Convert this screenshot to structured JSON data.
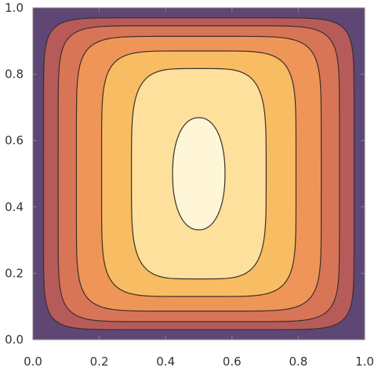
{
  "chart_data": {
    "type": "contour",
    "title": "",
    "xlabel": "",
    "ylabel": "",
    "xlim": [
      0,
      1
    ],
    "ylim": [
      0,
      1
    ],
    "x_ticks": [
      "0.0",
      "0.2",
      "0.4",
      "0.6",
      "0.8",
      "1.0"
    ],
    "y_ticks": [
      "0.0",
      "0.2",
      "0.4",
      "0.6",
      "0.8",
      "1.0"
    ],
    "grid": false,
    "legend": "none",
    "contour_levels": [
      {
        "level": 1,
        "fill": "#B75B5A",
        "center": [
          0.5,
          0.5
        ],
        "half_width": 0.468,
        "half_height": 0.47,
        "shape_exponent": 10
      },
      {
        "level": 2,
        "fill": "#D97557",
        "center": [
          0.5,
          0.5
        ],
        "half_width": 0.424,
        "half_height": 0.446,
        "shape_exponent": 8.5
      },
      {
        "level": 3,
        "fill": "#EF9558",
        "center": [
          0.5,
          0.5
        ],
        "half_width": 0.369,
        "half_height": 0.414,
        "shape_exponent": 7.1
      },
      {
        "level": 4,
        "fill": "#F8BC62",
        "center": [
          0.5,
          0.5
        ],
        "half_width": 0.293,
        "half_height": 0.37,
        "shape_exponent": 5.8
      },
      {
        "level": 5,
        "fill": "#FEE09D",
        "center": [
          0.5,
          0.5
        ],
        "half_width": 0.203,
        "half_height": 0.317,
        "shape_exponent": 4.3
      },
      {
        "level": 6,
        "fill": "#FEF6D6",
        "center": [
          0.5,
          0.5
        ],
        "half_width": 0.079,
        "half_height": 0.169,
        "shape_exponent": 2.2
      }
    ],
    "colors": {
      "background": "#5E4675",
      "contour_line": "#3B2F2C",
      "frame": "#888888",
      "tick_text": "#333333"
    }
  }
}
